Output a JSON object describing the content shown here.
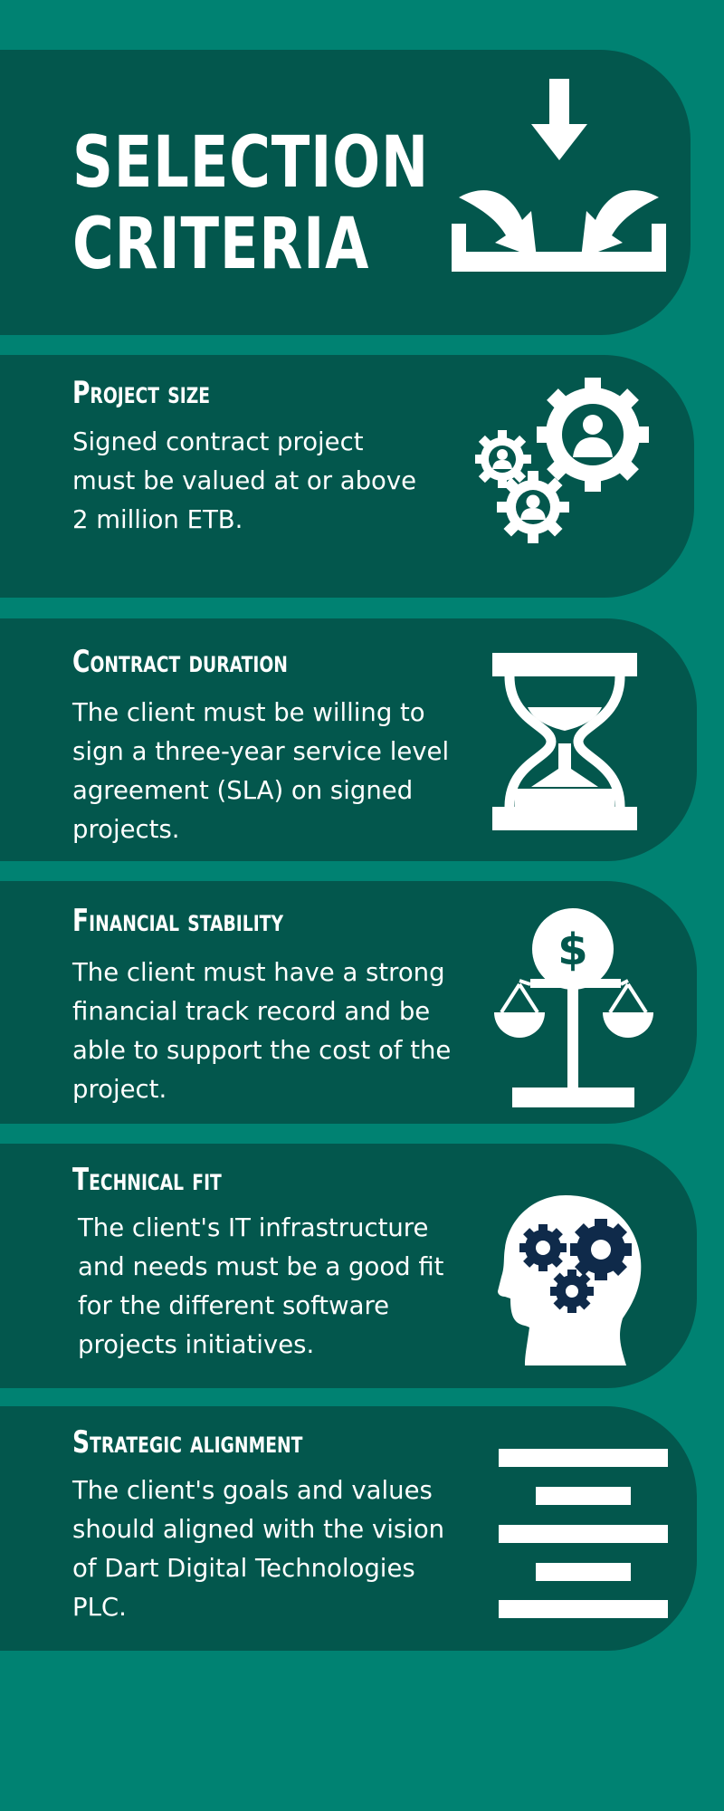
{
  "header": {
    "title_line1": "SELECTION",
    "title_line2": "CRITERIA",
    "icon": "download-arrows-tray-icon"
  },
  "criteria": [
    {
      "heading": "Project size",
      "description": "Signed contract project must be valued at or above 2 million ETB.",
      "icon": "people-gears-icon"
    },
    {
      "heading": "Contract duration",
      "description": "The client must be willing to sign a three-year service level agreement (SLA) on signed projects.",
      "icon": "hourglass-icon"
    },
    {
      "heading": "Financial stability",
      "description": "The client must have a strong financial track record and be able to support the cost of the project.",
      "icon": "dollar-scale-icon"
    },
    {
      "heading": "Technical fit",
      "description": "The client's IT infrastructure and needs must be a good fit for the different software projects initiatives.",
      "icon": "head-gears-icon"
    },
    {
      "heading": "Strategic alignment",
      "description": "The client's goals and values should aligned with the vision of Dart Digital Technologies PLC.",
      "icon": "center-align-icon"
    }
  ],
  "colors": {
    "background": "#008272",
    "card": "#03574D",
    "text": "#ffffff",
    "icon_accent": "#0F2A4A"
  }
}
